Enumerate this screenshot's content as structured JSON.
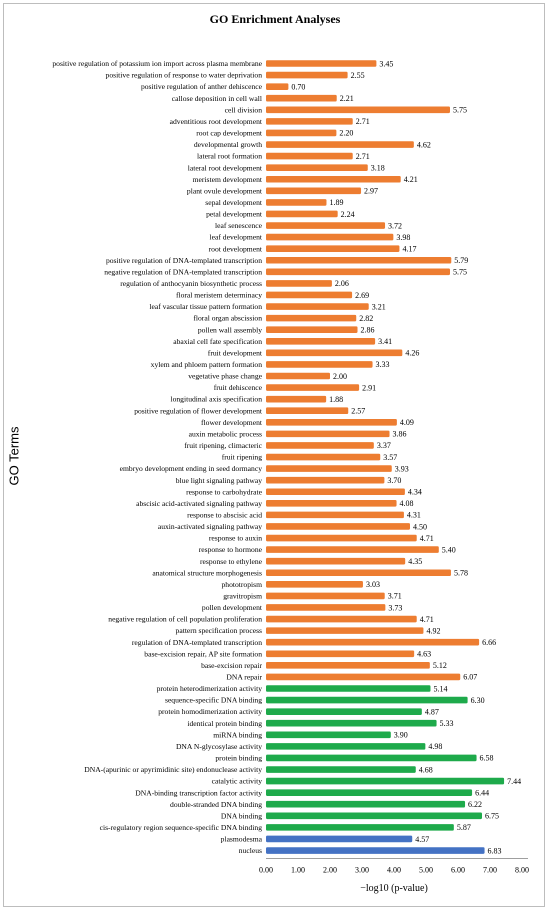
{
  "chart_data": {
    "type": "bar",
    "orientation": "horizontal",
    "title": "GO Enrichment Analyses",
    "ylabel": "GO Terms",
    "xlabel": "−log10 (p-value)",
    "xlim": [
      0,
      8
    ],
    "xticks": [
      "0.00",
      "1.00",
      "2.00",
      "3.00",
      "4.00",
      "5.00",
      "6.00",
      "7.00",
      "8.00"
    ],
    "colors": {
      "orange": "#ED7D31",
      "green": "#1EAA4B",
      "blue": "#4472C4"
    },
    "bars": [
      {
        "label": "positive regulation of potassium ion import across plasma membrane",
        "value": 3.45,
        "value_label": "3.45",
        "color": "orange"
      },
      {
        "label": "positive regulation of response to water deprivation",
        "value": 2.55,
        "value_label": "2.55",
        "color": "orange"
      },
      {
        "label": "positive regulation of anther dehiscence",
        "value": 0.7,
        "value_label": "0.70",
        "color": "orange"
      },
      {
        "label": "callose deposition in cell wall",
        "value": 2.21,
        "value_label": "2.21",
        "color": "orange"
      },
      {
        "label": "cell division",
        "value": 5.75,
        "value_label": "5.75",
        "color": "orange"
      },
      {
        "label": "adventitious root development",
        "value": 2.71,
        "value_label": "2.71",
        "color": "orange"
      },
      {
        "label": "root cap development",
        "value": 2.2,
        "value_label": "2.20",
        "color": "orange"
      },
      {
        "label": "developmental growth",
        "value": 4.62,
        "value_label": "4.62",
        "color": "orange"
      },
      {
        "label": "lateral root formation",
        "value": 2.71,
        "value_label": "2.71",
        "color": "orange"
      },
      {
        "label": "lateral root development",
        "value": 3.18,
        "value_label": "3.18",
        "color": "orange"
      },
      {
        "label": "meristem development",
        "value": 4.21,
        "value_label": "4.21",
        "color": "orange"
      },
      {
        "label": "plant ovule development",
        "value": 2.97,
        "value_label": "2.97",
        "color": "orange"
      },
      {
        "label": "sepal development",
        "value": 1.89,
        "value_label": "1.89",
        "color": "orange"
      },
      {
        "label": "petal development",
        "value": 2.24,
        "value_label": "2.24",
        "color": "orange"
      },
      {
        "label": "leaf senescence",
        "value": 3.72,
        "value_label": "3.72",
        "color": "orange"
      },
      {
        "label": "leaf development",
        "value": 3.98,
        "value_label": "3.98",
        "color": "orange"
      },
      {
        "label": "root development",
        "value": 4.17,
        "value_label": "4.17",
        "color": "orange"
      },
      {
        "label": "positive regulation of DNA-templated transcription",
        "value": 5.79,
        "value_label": "5.79",
        "color": "orange"
      },
      {
        "label": "negative regulation of DNA-templated transcription",
        "value": 5.75,
        "value_label": "5.75",
        "color": "orange"
      },
      {
        "label": "regulation of anthocyanin biosynthetic process",
        "value": 2.06,
        "value_label": "2.06",
        "color": "orange"
      },
      {
        "label": "floral meristem determinacy",
        "value": 2.69,
        "value_label": "2.69",
        "color": "orange"
      },
      {
        "label": "leaf vascular tissue pattern formation",
        "value": 3.21,
        "value_label": "3.21",
        "color": "orange"
      },
      {
        "label": "floral organ abscission",
        "value": 2.82,
        "value_label": "2.82",
        "color": "orange"
      },
      {
        "label": "pollen wall assembly",
        "value": 2.86,
        "value_label": "2.86",
        "color": "orange"
      },
      {
        "label": "abaxial cell fate specification",
        "value": 3.41,
        "value_label": "3.41",
        "color": "orange"
      },
      {
        "label": "fruit development",
        "value": 4.26,
        "value_label": "4.26",
        "color": "orange"
      },
      {
        "label": "xylem and phloem pattern formation",
        "value": 3.33,
        "value_label": "3.33",
        "color": "orange"
      },
      {
        "label": "vegetative phase change",
        "value": 2.0,
        "value_label": "2.00",
        "color": "orange"
      },
      {
        "label": "fruit dehiscence",
        "value": 2.91,
        "value_label": "2.91",
        "color": "orange"
      },
      {
        "label": "longitudinal axis specification",
        "value": 1.88,
        "value_label": "1.88",
        "color": "orange"
      },
      {
        "label": "positive regulation of flower development",
        "value": 2.57,
        "value_label": "2.57",
        "color": "orange"
      },
      {
        "label": "flower development",
        "value": 4.09,
        "value_label": "4.09",
        "color": "orange"
      },
      {
        "label": "auxin metabolic process",
        "value": 3.86,
        "value_label": "3.86",
        "color": "orange"
      },
      {
        "label": "fruit ripening, climacteric",
        "value": 3.37,
        "value_label": "3.37",
        "color": "orange"
      },
      {
        "label": "fruit ripening",
        "value": 3.57,
        "value_label": "3.57",
        "color": "orange"
      },
      {
        "label": "embryo development ending in seed dormancy",
        "value": 3.93,
        "value_label": "3.93",
        "color": "orange"
      },
      {
        "label": "blue light signaling pathway",
        "value": 3.7,
        "value_label": "3.70",
        "color": "orange"
      },
      {
        "label": "response to carbohydrate",
        "value": 4.34,
        "value_label": "4.34",
        "color": "orange"
      },
      {
        "label": "abscisic acid-activated signaling pathway",
        "value": 4.08,
        "value_label": "4.08",
        "color": "orange"
      },
      {
        "label": "response to abscisic acid",
        "value": 4.31,
        "value_label": "4.31",
        "color": "orange"
      },
      {
        "label": "auxin-activated signaling pathway",
        "value": 4.5,
        "value_label": "4.50",
        "color": "orange"
      },
      {
        "label": "response to auxin",
        "value": 4.71,
        "value_label": "4.71",
        "color": "orange"
      },
      {
        "label": "response to hormone",
        "value": 5.4,
        "value_label": "5.40",
        "color": "orange"
      },
      {
        "label": "response to ethylene",
        "value": 4.35,
        "value_label": "4.35",
        "color": "orange"
      },
      {
        "label": "anatomical structure morphogenesis",
        "value": 5.78,
        "value_label": "5.78",
        "color": "orange"
      },
      {
        "label": "phototropism",
        "value": 3.03,
        "value_label": "3.03",
        "color": "orange"
      },
      {
        "label": "gravitropism",
        "value": 3.71,
        "value_label": "3.71",
        "color": "orange"
      },
      {
        "label": "pollen development",
        "value": 3.73,
        "value_label": "3.73",
        "color": "orange"
      },
      {
        "label": "negative regulation of cell population proliferation",
        "value": 4.71,
        "value_label": "4.71",
        "color": "orange"
      },
      {
        "label": "pattern specification process",
        "value": 4.92,
        "value_label": "4.92",
        "color": "orange"
      },
      {
        "label": "regulation of DNA-templated transcription",
        "value": 6.66,
        "value_label": "6.66",
        "color": "orange"
      },
      {
        "label": "base-excision repair, AP site formation",
        "value": 4.63,
        "value_label": "4.63",
        "color": "orange"
      },
      {
        "label": "base-excision repair",
        "value": 5.12,
        "value_label": "5.12",
        "color": "orange"
      },
      {
        "label": "DNA repair",
        "value": 6.07,
        "value_label": "6.07",
        "color": "orange"
      },
      {
        "label": "protein heterodimerization activity",
        "value": 5.14,
        "value_label": "5.14",
        "color": "green"
      },
      {
        "label": "sequence-specific DNA binding",
        "value": 6.3,
        "value_label": "6.30",
        "color": "green"
      },
      {
        "label": "protein homodimerization activity",
        "value": 4.87,
        "value_label": "4.87",
        "color": "green"
      },
      {
        "label": "identical protein binding",
        "value": 5.33,
        "value_label": "5.33",
        "color": "green"
      },
      {
        "label": "miRNA binding",
        "value": 3.9,
        "value_label": "3.90",
        "color": "green"
      },
      {
        "label": "DNA N-glycosylase activity",
        "value": 4.98,
        "value_label": "4.98",
        "color": "green"
      },
      {
        "label": "protein binding",
        "value": 6.58,
        "value_label": "6.58",
        "color": "green"
      },
      {
        "label": "DNA-(apurinic or apyrimidinic site) endonuclease activity",
        "value": 4.68,
        "value_label": "4.68",
        "color": "green"
      },
      {
        "label": "catalytic activity",
        "value": 7.44,
        "value_label": "7.44",
        "color": "green"
      },
      {
        "label": "DNA-binding transcription factor activity",
        "value": 6.44,
        "value_label": "6.44",
        "color": "green"
      },
      {
        "label": "double-stranded DNA binding",
        "value": 6.22,
        "value_label": "6.22",
        "color": "green"
      },
      {
        "label": "DNA binding",
        "value": 6.75,
        "value_label": "6.75",
        "color": "green"
      },
      {
        "label": "cis-regulatory region sequence-specific DNA binding",
        "value": 5.87,
        "value_label": "5.87",
        "color": "green"
      },
      {
        "label": "plasmodesma",
        "value": 4.57,
        "value_label": "4.57",
        "color": "blue"
      },
      {
        "label": "nucleus",
        "value": 6.83,
        "value_label": "6.83",
        "color": "blue"
      }
    ]
  }
}
